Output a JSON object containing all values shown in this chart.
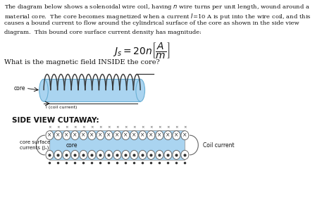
{
  "bg_color": "#ffffff",
  "text_color": "#111111",
  "core_color": "#aad4f0",
  "core_border": "#6aafd4",
  "coil_color": "#777777",
  "para_lines": [
    "The diagram below shows a solenoidal wire coil, having $n$ wire turns per unit length, wound around a",
    "material core.  The core becomes magnetized when a current $I$=10 A is put into the wire coil, and this",
    "causes a bound current to flow around the cylindrical surface of the core as shown in the side view",
    "diagram.  This bound core surface current density has magnitude:"
  ],
  "formula": "$J_s = 20n\\left[\\dfrac{A}{m}\\right]$",
  "question": "What is the magnetic field INSIDE the core?",
  "side_view_label": "SIDE VIEW CUTAWAY:",
  "core_label": "core",
  "coil_current_label": "Coil current",
  "core_surf_label": "core surface\ncurrents (Jₛ)",
  "coil_arrow_label": "I (coil current)"
}
